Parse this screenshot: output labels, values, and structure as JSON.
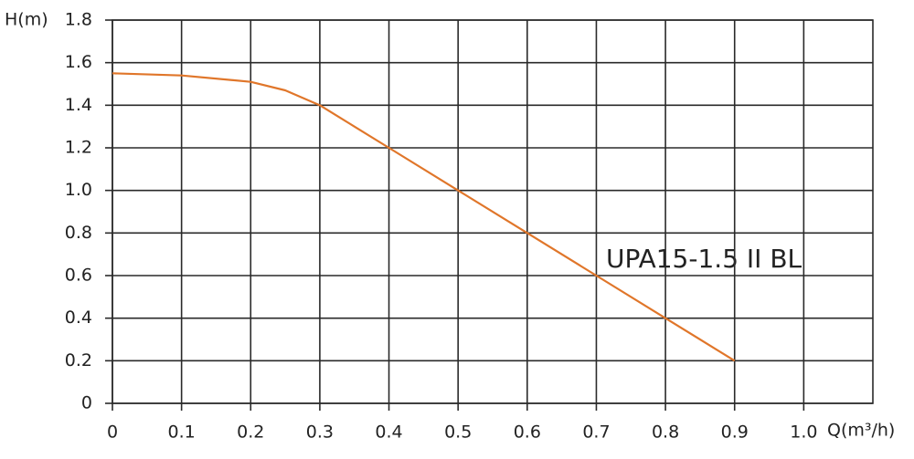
{
  "chart_data": {
    "type": "line",
    "x_label": "Q(m³/h)",
    "y_label": "H(m)",
    "annotation": "UPA15-1.5 II BL",
    "xlim": [
      0,
      1.1
    ],
    "ylim": [
      0,
      1.8
    ],
    "xticks": [
      0,
      0.1,
      0.2,
      0.3,
      0.4,
      0.5,
      0.6,
      0.7,
      0.8,
      0.9,
      {
        "value": 1,
        "label": "1.0"
      }
    ],
    "yticks": [
      0,
      0.2,
      0.4,
      0.6,
      0.8,
      {
        "value": 1,
        "label": "1.0"
      },
      1.2,
      1.4,
      1.6,
      1.8
    ],
    "grid": true,
    "x": [
      0,
      0.1,
      0.2,
      0.25,
      0.3,
      0.35,
      0.4,
      0.5,
      0.6,
      0.7,
      0.8,
      0.9
    ],
    "series": [
      {
        "name": "UPA15-1.5 II BL",
        "color": "#e0762a",
        "values": [
          1.55,
          1.54,
          1.51,
          1.47,
          1.4,
          1.3,
          1.2,
          1.0,
          0.8,
          0.6,
          0.4,
          0.2
        ]
      }
    ]
  }
}
